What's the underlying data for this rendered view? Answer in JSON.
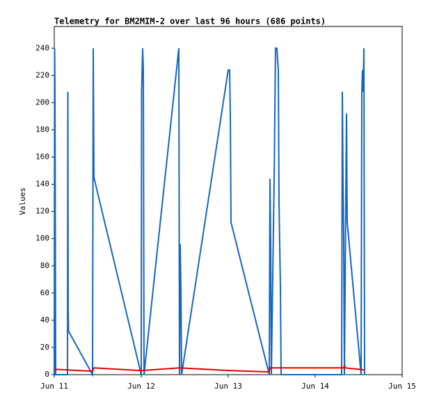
{
  "chart_data": {
    "type": "line",
    "title": "Telemetry for BM2MIM-2 over last 96 hours (686 points)",
    "y_label": "Values",
    "xlim": [
      0,
      4
    ],
    "xticks": [
      {
        "value": 0,
        "label": "Jun 11"
      },
      {
        "value": 1,
        "label": "Jun 12"
      },
      {
        "value": 2,
        "label": "Jun 13"
      },
      {
        "value": 3,
        "label": "Jun 14"
      },
      {
        "value": 4,
        "label": "Jun 15"
      }
    ],
    "ylim": [
      0,
      256
    ],
    "yticks": [
      0,
      20,
      40,
      60,
      80,
      100,
      120,
      140,
      160,
      180,
      200,
      220,
      240
    ],
    "series": [
      {
        "color": "#1565c0",
        "x": [
          0.0,
          0.004,
          0.008,
          0.016,
          0.152,
          0.156,
          0.16,
          0.164,
          0.44,
          0.448,
          0.456,
          1.0,
          1.004,
          1.016,
          1.024,
          1.032,
          1.432,
          1.44,
          1.448,
          1.456,
          1.464,
          2.0,
          2.016,
          2.024,
          2.032,
          2.472,
          2.48,
          2.488,
          2.496,
          2.528,
          2.544,
          2.56,
          2.576,
          2.584,
          2.6,
          2.608,
          3.304,
          3.312,
          3.32,
          3.328,
          3.336,
          3.36,
          3.368,
          3.528,
          3.536,
          3.544,
          3.552,
          3.56,
          3.568
        ],
        "values": [
          0,
          240,
          208,
          0,
          0,
          208,
          48,
          32,
          0,
          240,
          145,
          0,
          208,
          240,
          224,
          0,
          240,
          0,
          96,
          64,
          0,
          224,
          224,
          192,
          112,
          0,
          144,
          96,
          0,
          144,
          240,
          240,
          224,
          128,
          64,
          0,
          0,
          208,
          144,
          96,
          0,
          192,
          112,
          0,
          208,
          224,
          208,
          240,
          0
        ]
      },
      {
        "color": "#e00000",
        "x": [
          0,
          0.44,
          0.456,
          1.0,
          1.44,
          2.016,
          2.472,
          2.48,
          3.328,
          3.336,
          3.344,
          3.568
        ],
        "values": [
          4,
          2.5,
          5,
          3,
          5,
          3,
          2,
          5,
          5,
          7,
          5,
          3.5
        ]
      }
    ]
  }
}
